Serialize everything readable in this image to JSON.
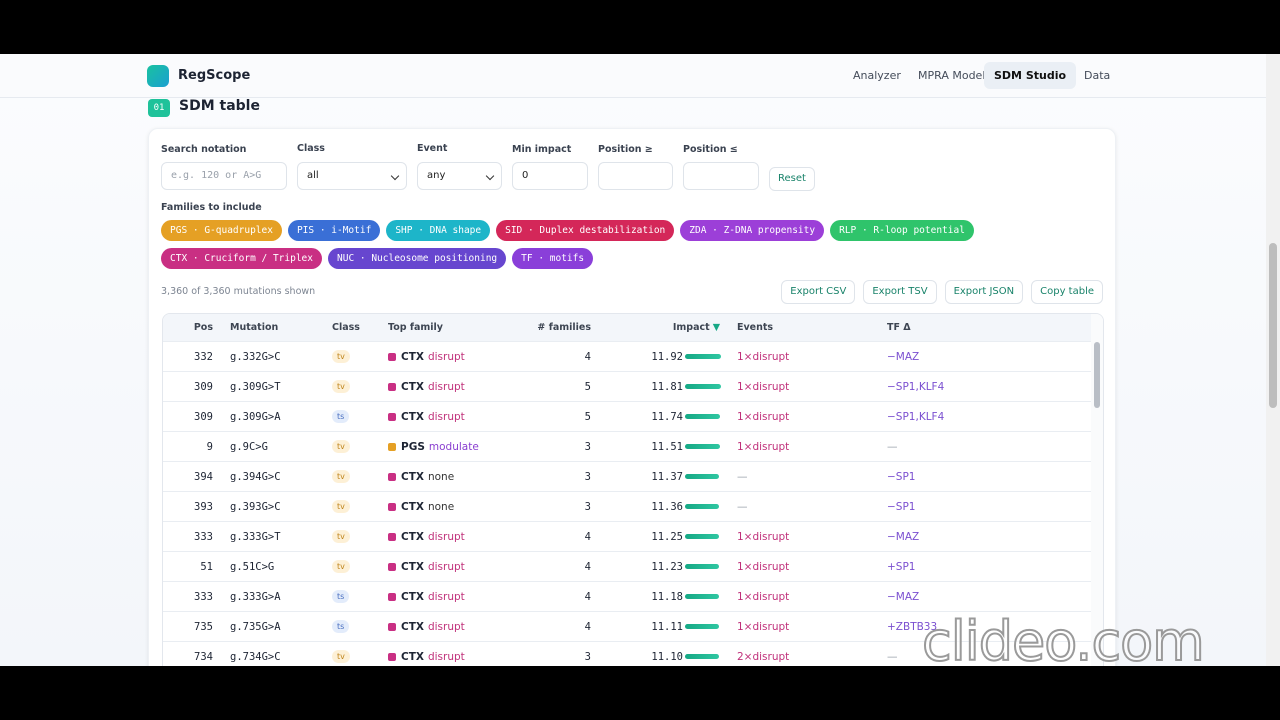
{
  "nav": {
    "brand": "RegScope",
    "links": [
      "Analyzer",
      "MPRA Model",
      "SDM Studio",
      "Data"
    ],
    "active": 2
  },
  "section": {
    "number": "01",
    "title": "SDM table"
  },
  "filters": {
    "search": {
      "label": "Search notation",
      "placeholder": "e.g. 120 or A>G"
    },
    "class": {
      "label": "Class",
      "value": "all"
    },
    "event": {
      "label": "Event",
      "value": "any"
    },
    "min_impact": {
      "label": "Min impact",
      "value": 0
    },
    "pos_min": {
      "label": "Position ≥"
    },
    "pos_max": {
      "label": "Position ≤"
    },
    "reset": "Reset"
  },
  "families": {
    "label": "Families to include",
    "chips": [
      {
        "label": "PGS · G-quadruplex",
        "color": "#e5a024"
      },
      {
        "label": "PIS · i-Motif",
        "color": "#3a6fd6"
      },
      {
        "label": "SHP · DNA shape",
        "color": "#1db5c9"
      },
      {
        "label": "SID · Duplex destabilization",
        "color": "#d42759"
      },
      {
        "label": "ZDA · Z-DNA propensity",
        "color": "#9c3fd8"
      },
      {
        "label": "RLP · R-loop potential",
        "color": "#2fc46b"
      },
      {
        "label": "CTX · Cruciform / Triplex",
        "color": "#c92f83"
      },
      {
        "label": "NUC · Nucleosome positioning",
        "color": "#6746cf"
      },
      {
        "label": "TF · motifs",
        "color": "#8a3fd9"
      }
    ]
  },
  "summary": "3,360 of 3,360 mutations shown",
  "actions": [
    "Export CSV",
    "Export TSV",
    "Export JSON",
    "Copy table"
  ],
  "table": {
    "columns": [
      "Pos",
      "Mutation",
      "Class",
      "Top family",
      "# families",
      "Impact",
      "Events",
      "TF Δ"
    ],
    "sort_column": 5,
    "sort_arrow": "▼",
    "rows": [
      {
        "pos": 332,
        "mutation": "g.332G>C",
        "class": "tv",
        "family": "CTX",
        "effect": "disrupt",
        "families": 4,
        "impact": 11.92,
        "impact_label": "11.92",
        "events": "1×disrupt",
        "tf": "−MAZ"
      },
      {
        "pos": 309,
        "mutation": "g.309G>T",
        "class": "tv",
        "family": "CTX",
        "effect": "disrupt",
        "families": 5,
        "impact": 11.81,
        "impact_label": "11.81",
        "events": "1×disrupt",
        "tf": "−SP1,KLF4"
      },
      {
        "pos": 309,
        "mutation": "g.309G>A",
        "class": "ts",
        "family": "CTX",
        "effect": "disrupt",
        "families": 5,
        "impact": 11.74,
        "impact_label": "11.74",
        "events": "1×disrupt",
        "tf": "−SP1,KLF4"
      },
      {
        "pos": 9,
        "mutation": "g.9C>G",
        "class": "tv",
        "family": "PGS",
        "effect": "modulate",
        "families": 3,
        "impact": 11.51,
        "impact_label": "11.51",
        "events": "1×disrupt",
        "tf": "—"
      },
      {
        "pos": 394,
        "mutation": "g.394G>C",
        "class": "tv",
        "family": "CTX",
        "effect": "none",
        "families": 3,
        "impact": 11.37,
        "impact_label": "11.37",
        "events": "—",
        "tf": "−SP1"
      },
      {
        "pos": 393,
        "mutation": "g.393G>C",
        "class": "tv",
        "family": "CTX",
        "effect": "none",
        "families": 3,
        "impact": 11.36,
        "impact_label": "11.36",
        "events": "—",
        "tf": "−SP1"
      },
      {
        "pos": 333,
        "mutation": "g.333G>T",
        "class": "tv",
        "family": "CTX",
        "effect": "disrupt",
        "families": 4,
        "impact": 11.25,
        "impact_label": "11.25",
        "events": "1×disrupt",
        "tf": "−MAZ"
      },
      {
        "pos": 51,
        "mutation": "g.51C>G",
        "class": "tv",
        "family": "CTX",
        "effect": "disrupt",
        "families": 4,
        "impact": 11.23,
        "impact_label": "11.23",
        "events": "1×disrupt",
        "tf": "+SP1"
      },
      {
        "pos": 333,
        "mutation": "g.333G>A",
        "class": "ts",
        "family": "CTX",
        "effect": "disrupt",
        "families": 4,
        "impact": 11.18,
        "impact_label": "11.18",
        "events": "1×disrupt",
        "tf": "−MAZ"
      },
      {
        "pos": 735,
        "mutation": "g.735G>A",
        "class": "ts",
        "family": "CTX",
        "effect": "disrupt",
        "families": 4,
        "impact": 11.11,
        "impact_label": "11.11",
        "events": "1×disrupt",
        "tf": "+ZBTB33"
      },
      {
        "pos": 734,
        "mutation": "g.734G>C",
        "class": "tv",
        "family": "CTX",
        "effect": "disrupt",
        "families": 3,
        "impact": 11.1,
        "impact_label": "11.10",
        "events": "2×disrupt",
        "tf": "—"
      }
    ]
  },
  "watermark": "clideo.com"
}
